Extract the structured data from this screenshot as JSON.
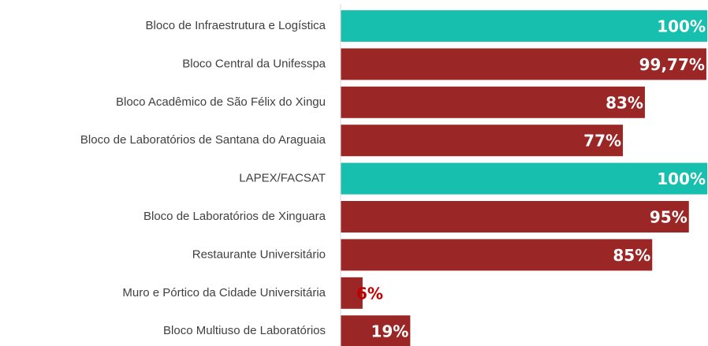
{
  "chart_data": {
    "type": "barh",
    "categories": [
      "Bloco de Infraestrutura e Logística",
      "Bloco Central da Unifesspa",
      "Bloco Acadêmico de São Félix do Xingu",
      "Bloco de Laboratórios de Santana do Araguaia",
      "LAPEX/FACSAT",
      "Bloco de Laboratórios de Xinguara",
      "Restaurante Universitário",
      "Muro e Pórtico da Cidade Universitária",
      "Bloco Multiuso de Laboratórios"
    ],
    "values": [
      100,
      99.77,
      83,
      77,
      100,
      95,
      85,
      6,
      19
    ],
    "value_labels": [
      "100%",
      "99,77%",
      "83%",
      "77%",
      "100%",
      "95%",
      "85%",
      "6%",
      "19%"
    ],
    "colors": [
      "#17bfae",
      "#9b2626",
      "#9b2626",
      "#9b2626",
      "#17bfae",
      "#9b2626",
      "#9b2626",
      "#9b2626",
      "#9b2626"
    ],
    "value_label_colors": [
      "#ffffff",
      "#ffffff",
      "#ffffff",
      "#ffffff",
      "#ffffff",
      "#ffffff",
      "#ffffff",
      "#c00000",
      "#ffffff"
    ],
    "xlim": [
      0,
      100
    ]
  }
}
